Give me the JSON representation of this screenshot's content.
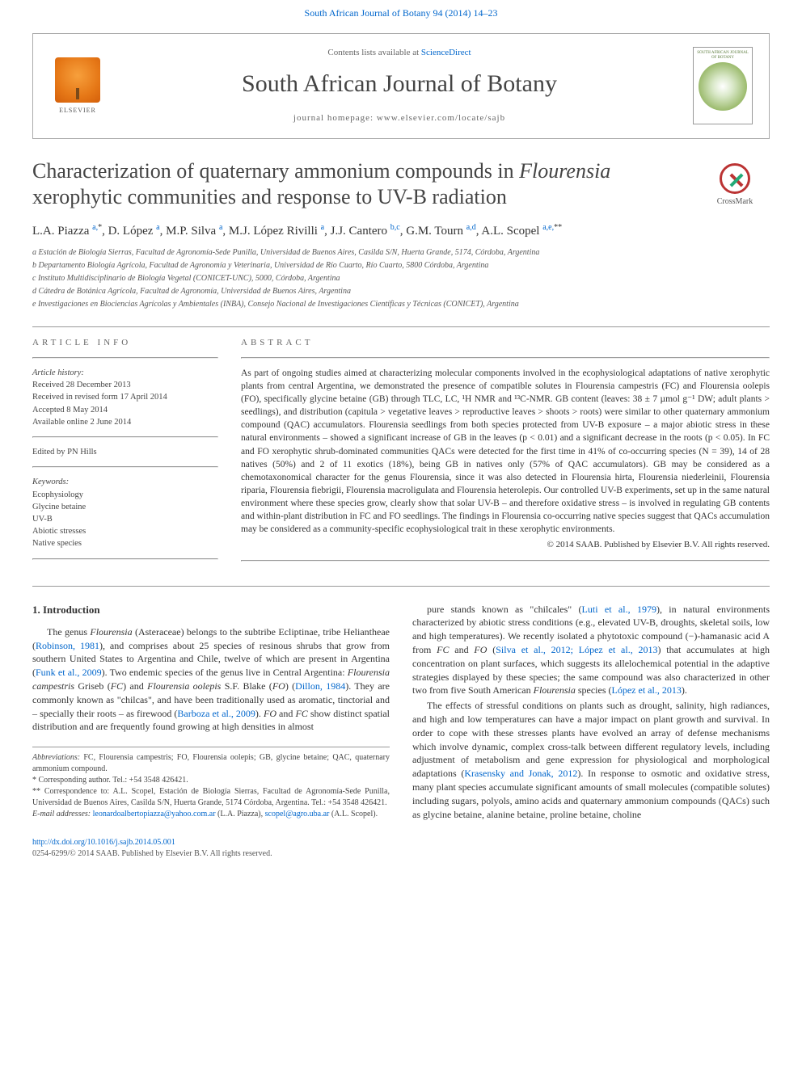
{
  "colors": {
    "link": "#0066cc",
    "text": "#333333",
    "muted": "#666666",
    "rule": "#999999",
    "elsevier_orange": "#e67817",
    "crossmark_red": "#bb3333",
    "crossmark_green": "#22aa77"
  },
  "fonts": {
    "body_family": "Georgia, 'Times New Roman', serif",
    "title_family": "'Times New Roman', serif",
    "title_size_pt": 26,
    "journal_title_size_pt": 30,
    "abstract_size_pt": 11.5,
    "body_size_pt": 12,
    "small_size_pt": 10
  },
  "top_link": "South African Journal of Botany 94 (2014) 14–23",
  "header": {
    "publisher_name": "ELSEVIER",
    "sd_prefix": "Contents lists available at ",
    "sd_link": "ScienceDirect",
    "journal_title": "South African Journal of Botany",
    "homepage_line": "journal homepage: www.elsevier.com/locate/sajb",
    "cover_caption": "SOUTH AFRICAN JOURNAL OF BOTANY"
  },
  "crossmark_label": "CrossMark",
  "article": {
    "title_pre": "Characterization of quaternary ammonium compounds in ",
    "title_ital": "Flourensia",
    "title_post": " xerophytic communities and response to UV-B radiation",
    "authors_html": "L.A. Piazza <sup><a>a,</a>*</sup>, D. López <sup><a>a</a></sup>, M.P. Silva <sup><a>a</a></sup>, M.J. López Rivilli <sup><a>a</a></sup>, J.J. Cantero <sup><a>b,c</a></sup>, G.M. Tourn <sup><a>a,d</a></sup>, A.L. Scopel <sup><a>a,e,</a>**</sup>",
    "affiliations": [
      "a  Estación de Biología Sierras, Facultad de Agronomía-Sede Punilla, Universidad de Buenos Aires, Casilda S/N, Huerta Grande, 5174, Córdoba, Argentina",
      "b  Departamento Biología Agrícola, Facultad de Agronomía y Veterinaria, Universidad de Río Cuarto, Río Cuarto, 5800 Córdoba, Argentina",
      "c  Instituto Multidisciplinario de Biología Vegetal (CONICET-UNC), 5000, Córdoba, Argentina",
      "d  Cátedra de Botánica Agrícola, Facultad de Agronomía, Universidad de Buenos Aires, Argentina",
      "e  Investigaciones en Biociencias Agrícolas y Ambientales (INBA), Consejo Nacional de Investigaciones Científicas y Técnicas (CONICET), Argentina"
    ]
  },
  "info": {
    "header": "ARTICLE INFO",
    "history_label": "Article history:",
    "history": [
      "Received 28 December 2013",
      "Received in revised form 17 April 2014",
      "Accepted 8 May 2014",
      "Available online 2 June 2014"
    ],
    "edited_by": "Edited by PN Hills",
    "keywords_label": "Keywords:",
    "keywords": [
      "Ecophysiology",
      "Glycine betaine",
      "UV-B",
      "Abiotic stresses",
      "Native species"
    ]
  },
  "abstract": {
    "header": "ABSTRACT",
    "text": "As part of ongoing studies aimed at characterizing molecular components involved in the ecophysiological adaptations of native xerophytic plants from central Argentina, we demonstrated the presence of compatible solutes in Flourensia campestris (FC) and Flourensia oolepis (FO), specifically glycine betaine (GB) through TLC, LC, ¹H NMR and ¹³C-NMR. GB content (leaves: 38 ± 7 µmol g⁻¹ DW; adult plants > seedlings), and distribution (capitula > vegetative leaves > reproductive leaves > shoots > roots) were similar to other quaternary ammonium compound (QAC) accumulators. Flourensia seedlings from both species protected from UV-B exposure – a major abiotic stress in these natural environments – showed a significant increase of GB in the leaves (p < 0.01) and a significant decrease in the roots (p < 0.05). In FC and FO xerophytic shrub-dominated communities QACs were detected for the first time in 41% of co-occurring species (N = 39), 14 of 28 natives (50%) and 2 of 11 exotics (18%), being GB in natives only (57% of QAC accumulators). GB may be considered as a chemotaxonomical character for the genus Flourensia, since it was also detected in Flourensia hirta, Flourensia niederleinii, Flourensia riparia, Flourensia fiebrigii, Flourensia macroligulata and Flourensia heterolepis. Our controlled UV-B experiments, set up in the same natural environment where these species grow, clearly show that solar UV-B – and therefore oxidative stress – is involved in regulating GB contents and within-plant distribution in FC and FO seedlings. The findings in Flourensia co-occurring native species suggest that QACs accumulation may be considered as a community-specific ecophysiological trait in these xerophytic environments.",
    "copyright": "© 2014 SAAB. Published by Elsevier B.V. All rights reserved."
  },
  "section1": {
    "heading": "1. Introduction",
    "para1_a": "The genus ",
    "para1_b": "Flourensia",
    "para1_c": " (Asteraceae) belongs to the subtribe Ecliptinae, tribe Heliantheae (",
    "ref1": "Robinson, 1981",
    "para1_d": "), and comprises about 25 species of resinous shrubs that grow from southern United States to Argentina and Chile, twelve of which are present in Argentina (",
    "ref2": "Funk et al., 2009",
    "para1_e": "). Two endemic species of the genus live in Central Argentina: ",
    "para1_f": "Flourensia campestris",
    "para1_g": " Griseb (",
    "para1_h": "FC",
    "para1_i": ") and ",
    "para1_j": "Flourensia oolepis",
    "para1_k": " S.F. Blake (",
    "para1_l": "FO",
    "para1_m": ") (",
    "ref3": "Dillon, 1984",
    "para1_n": "). They are commonly known as \"chilcas\", and have been traditionally used as aromatic, tinctorial and – specially their roots – as firewood (",
    "ref4": "Barboza et al., 2009",
    "para1_o": "). ",
    "para1_p": "FO",
    "para1_q": " and ",
    "para1_r": "FC",
    "para1_s": " show distinct spatial distribution and are frequently found growing at high densities in almost",
    "para2_a": "pure stands known as \"chilcales\" (",
    "ref5": "Luti et al., 1979",
    "para2_b": "), in natural environments characterized by abiotic stress conditions (e.g., elevated UV-B, droughts, skeletal soils, low and high temperatures). We recently isolated a phytotoxic compound (−)-hamanasic acid A from ",
    "para2_c": "FC",
    "para2_d": " and ",
    "para2_e": "FO",
    "para2_f": " (",
    "ref6": "Silva et al., 2012; López et al., 2013",
    "para2_g": ") that accumulates at high concentration on plant surfaces, which suggests its allelochemical potential in the adaptive strategies displayed by these species; the same compound was also characterized in other two from five South American ",
    "para2_h": "Flourensia",
    "para2_i": " species (",
    "ref7": "López et al., 2013",
    "para2_j": ").",
    "para3_a": "The effects of stressful conditions on plants such as drought, salinity, high radiances, and high and low temperatures can have a major impact on plant growth and survival. In order to cope with these stresses plants have evolved an array of defense mechanisms which involve dynamic, complex cross-talk between different regulatory levels, including adjustment of metabolism and gene expression for physiological and morphological adaptations (",
    "ref8": "Krasensky and Jonak, 2012",
    "para3_b": "). In response to osmotic and oxidative stress, many plant species accumulate significant amounts of small molecules (compatible solutes) including sugars, polyols, amino acids and quaternary ammonium compounds (QACs) such as glycine betaine, alanine betaine, proline betaine, choline"
  },
  "footnotes": {
    "abbrev_label": "Abbreviations:",
    "abbrev_text": " FC, Flourensia campestris; FO, Flourensia oolepis; GB, glycine betaine; QAC, quaternary ammonium compound.",
    "corr1": "* Corresponding author. Tel.: +54 3548 426421.",
    "corr2": "** Correspondence to: A.L. Scopel, Estación de Biología Sierras, Facultad de Agronomía-Sede Punilla, Universidad de Buenos Aires, Casilda S/N, Huerta Grande, 5174 Córdoba, Argentina. Tel.: +54 3548 426421.",
    "email_label": "E-mail addresses:",
    "email1": "leonardoalbertopiazza@yahoo.com.ar",
    "email1_who": " (L.A. Piazza), ",
    "email2": "scopel@agro.uba.ar",
    "email2_who": " (A.L. Scopel)."
  },
  "footer": {
    "doi": "http://dx.doi.org/10.1016/j.sajb.2014.05.001",
    "issn_line": "0254-6299/© 2014 SAAB. Published by Elsevier B.V. All rights reserved."
  }
}
